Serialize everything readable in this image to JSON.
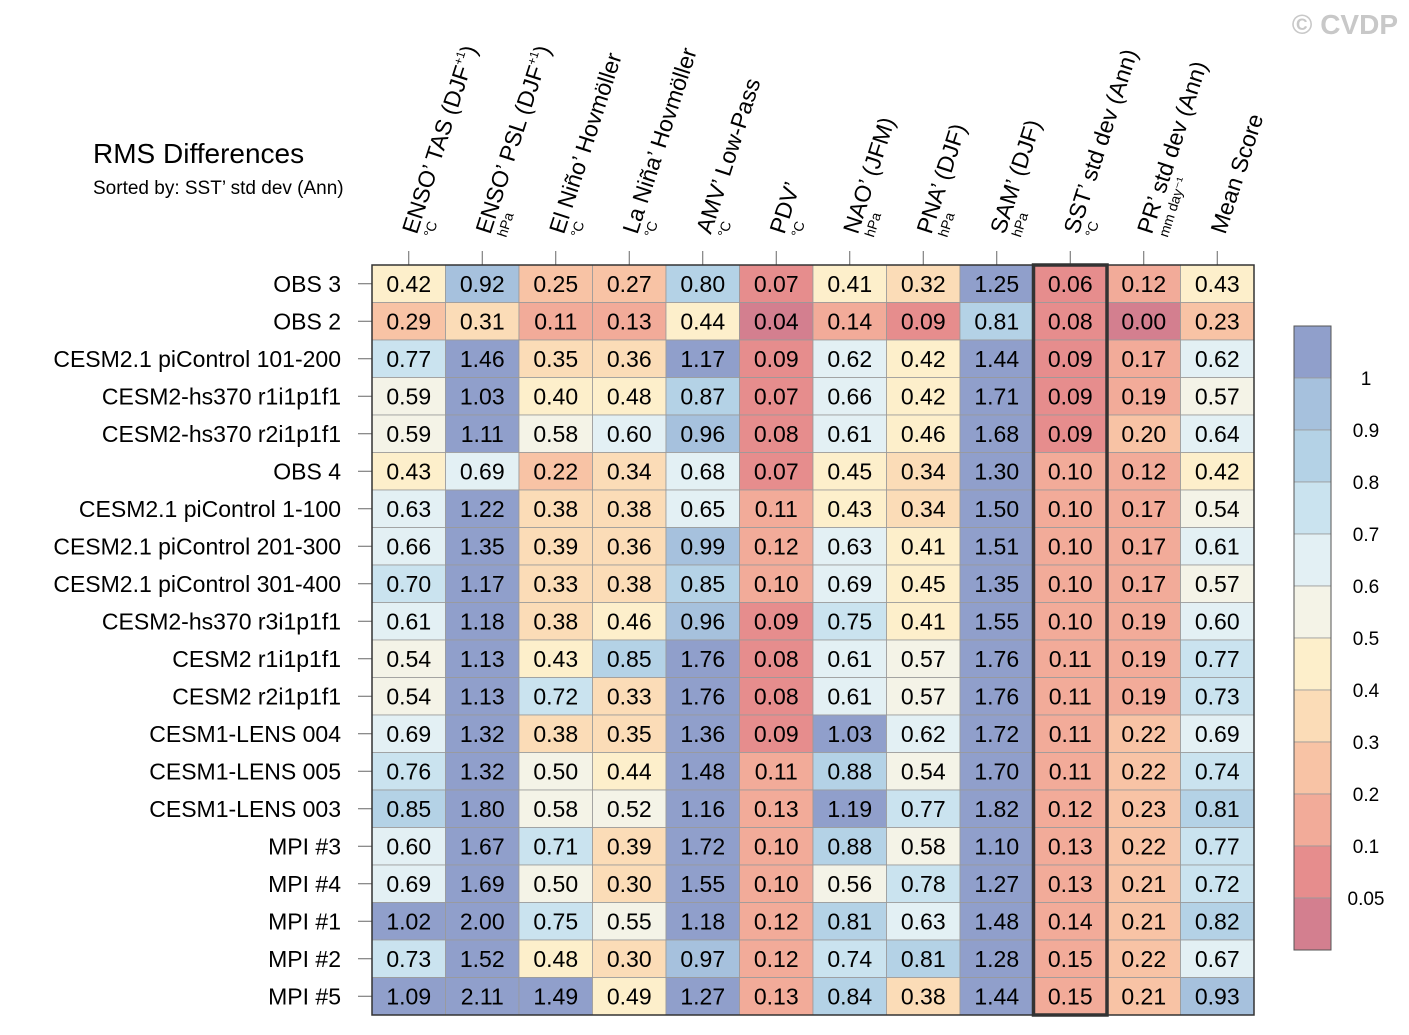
{
  "chart_data": {
    "type": "heatmap",
    "title": "RMS Differences",
    "subtitle": "Sorted by: SST’ std dev (Ann)",
    "copyright": "© CVDP",
    "columns": [
      {
        "label": "ENSO’ TAS (DJF",
        "sup": "+1",
        "close": ")",
        "unit": "°C"
      },
      {
        "label": "ENSO’ PSL (DJF",
        "sup": "+1",
        "close": ")",
        "unit": "hPa"
      },
      {
        "label": "El Niño’ Hovmöller",
        "sup": "",
        "close": "",
        "unit": "°C"
      },
      {
        "label": "La Niña’ Hovmöller",
        "sup": "",
        "close": "",
        "unit": "°C"
      },
      {
        "label": "AMV’ Low-Pass",
        "sup": "",
        "close": "",
        "unit": "°C"
      },
      {
        "label": "PDV’",
        "sup": "",
        "close": "",
        "unit": "°C"
      },
      {
        "label": "NAO’ (JFM)",
        "sup": "",
        "close": "",
        "unit": "hPa"
      },
      {
        "label": "PNA’ (DJF)",
        "sup": "",
        "close": "",
        "unit": "hPa"
      },
      {
        "label": "SAM’ (DJF)",
        "sup": "",
        "close": "",
        "unit": "hPa"
      },
      {
        "label": "SST’ std dev (Ann)",
        "sup": "",
        "close": "",
        "unit": "°C"
      },
      {
        "label": "PR’ std dev (Ann)",
        "sup": "",
        "close": "",
        "unit": "mm day⁻¹"
      },
      {
        "label": "Mean Score",
        "sup": "",
        "close": "",
        "unit": ""
      }
    ],
    "rows": [
      {
        "name": "OBS 3",
        "values": [
          0.42,
          0.92,
          0.25,
          0.27,
          0.8,
          0.07,
          0.41,
          0.32,
          1.25,
          0.06,
          0.12,
          0.43
        ]
      },
      {
        "name": "OBS 2",
        "values": [
          0.29,
          0.31,
          0.11,
          0.13,
          0.44,
          0.04,
          0.14,
          0.09,
          0.81,
          0.08,
          0.0,
          0.23
        ]
      },
      {
        "name": "CESM2.1 piControl 101-200",
        "values": [
          0.77,
          1.46,
          0.35,
          0.36,
          1.17,
          0.09,
          0.62,
          0.42,
          1.44,
          0.09,
          0.17,
          0.62
        ]
      },
      {
        "name": "CESM2-hs370 r1i1p1f1",
        "values": [
          0.59,
          1.03,
          0.4,
          0.48,
          0.87,
          0.07,
          0.66,
          0.42,
          1.71,
          0.09,
          0.19,
          0.57
        ]
      },
      {
        "name": "CESM2-hs370 r2i1p1f1",
        "values": [
          0.59,
          1.11,
          0.58,
          0.6,
          0.96,
          0.08,
          0.61,
          0.46,
          1.68,
          0.09,
          0.2,
          0.64
        ]
      },
      {
        "name": "OBS 4",
        "values": [
          0.43,
          0.69,
          0.22,
          0.34,
          0.68,
          0.07,
          0.45,
          0.34,
          1.3,
          0.1,
          0.12,
          0.42
        ]
      },
      {
        "name": "CESM2.1 piControl 1-100",
        "values": [
          0.63,
          1.22,
          0.38,
          0.38,
          0.65,
          0.11,
          0.43,
          0.34,
          1.5,
          0.1,
          0.17,
          0.54
        ]
      },
      {
        "name": "CESM2.1 piControl 201-300",
        "values": [
          0.66,
          1.35,
          0.39,
          0.36,
          0.99,
          0.12,
          0.63,
          0.41,
          1.51,
          0.1,
          0.17,
          0.61
        ]
      },
      {
        "name": "CESM2.1 piControl 301-400",
        "values": [
          0.7,
          1.17,
          0.33,
          0.38,
          0.85,
          0.1,
          0.69,
          0.45,
          1.35,
          0.1,
          0.17,
          0.57
        ]
      },
      {
        "name": "CESM2-hs370 r3i1p1f1",
        "values": [
          0.61,
          1.18,
          0.38,
          0.46,
          0.96,
          0.09,
          0.75,
          0.41,
          1.55,
          0.1,
          0.19,
          0.6
        ]
      },
      {
        "name": "CESM2 r1i1p1f1",
        "values": [
          0.54,
          1.13,
          0.43,
          0.85,
          1.76,
          0.08,
          0.61,
          0.57,
          1.76,
          0.11,
          0.19,
          0.77
        ]
      },
      {
        "name": "CESM2 r2i1p1f1",
        "values": [
          0.54,
          1.13,
          0.72,
          0.33,
          1.76,
          0.08,
          0.61,
          0.57,
          1.76,
          0.11,
          0.19,
          0.73
        ]
      },
      {
        "name": "CESM1-LENS 004",
        "values": [
          0.69,
          1.32,
          0.38,
          0.35,
          1.36,
          0.09,
          1.03,
          0.62,
          1.72,
          0.11,
          0.22,
          0.69
        ]
      },
      {
        "name": "CESM1-LENS 005",
        "values": [
          0.76,
          1.32,
          0.5,
          0.44,
          1.48,
          0.11,
          0.88,
          0.54,
          1.7,
          0.11,
          0.22,
          0.74
        ]
      },
      {
        "name": "CESM1-LENS 003",
        "values": [
          0.85,
          1.8,
          0.58,
          0.52,
          1.16,
          0.13,
          1.19,
          0.77,
          1.82,
          0.12,
          0.23,
          0.81
        ]
      },
      {
        "name": "MPI #3",
        "values": [
          0.6,
          1.67,
          0.71,
          0.39,
          1.72,
          0.1,
          0.88,
          0.58,
          1.1,
          0.13,
          0.22,
          0.77
        ]
      },
      {
        "name": "MPI #4",
        "values": [
          0.69,
          1.69,
          0.5,
          0.3,
          1.55,
          0.1,
          0.56,
          0.78,
          1.27,
          0.13,
          0.21,
          0.72
        ]
      },
      {
        "name": "MPI #1",
        "values": [
          1.02,
          2.0,
          0.75,
          0.55,
          1.18,
          0.12,
          0.81,
          0.63,
          1.48,
          0.14,
          0.21,
          0.82
        ]
      },
      {
        "name": "MPI #2",
        "values": [
          0.73,
          1.52,
          0.48,
          0.3,
          0.97,
          0.12,
          0.74,
          0.81,
          1.28,
          0.15,
          0.22,
          0.67
        ]
      },
      {
        "name": "MPI #5",
        "values": [
          1.09,
          2.11,
          1.49,
          0.49,
          1.27,
          0.13,
          0.84,
          0.38,
          1.44,
          0.15,
          0.21,
          0.93
        ]
      }
    ],
    "highlight_column": 9,
    "colorbar": {
      "thresholds": [
        0.05,
        0.1,
        0.2,
        0.3,
        0.4,
        0.5,
        0.6,
        0.7,
        0.8,
        0.9,
        1
      ],
      "labels": [
        "0.05",
        "0.1",
        "0.2",
        "0.3",
        "0.4",
        "0.5",
        "0.6",
        "0.7",
        "0.8",
        "0.9",
        "1"
      ],
      "colors": [
        "#d37f8f",
        "#e68d8d",
        "#f2ab99",
        "#f8c3a5",
        "#fbdcb7",
        "#fdefcb",
        "#f4f3e7",
        "#e3f0f4",
        "#cae3ef",
        "#b4d2e6",
        "#a6c1dd",
        "#909fcb"
      ]
    }
  }
}
